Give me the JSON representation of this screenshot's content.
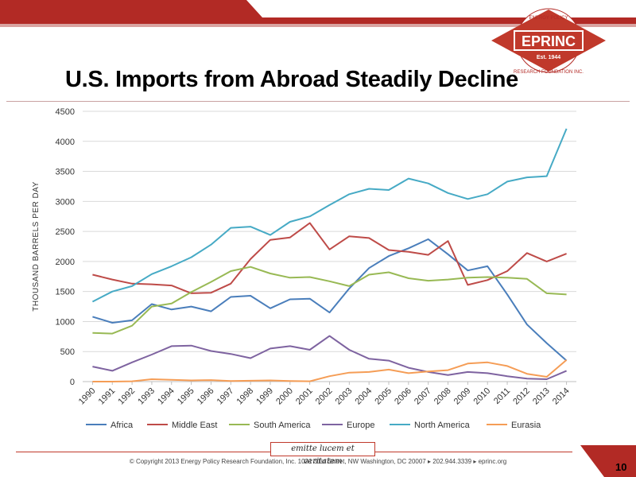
{
  "slide": {
    "title": "U.S. Imports from Abroad Steadily Decline",
    "page_number": "10",
    "motto": "emitte lucem et veritatem",
    "copyright": "© Copyright 2013 Energy Policy Research Foundation, Inc. 1031 31st Street, NW Washington, DC 20007 ▸ 202.944.3339 ▸ eprinc.org",
    "accent_color": "#c0392b"
  },
  "logo": {
    "name": "EPRINC",
    "est": "Est. 1944",
    "arc_top": "ENERGY POLICY",
    "arc_bottom": "RESEARCH FOUNDATION INC."
  },
  "chart_data": {
    "type": "line",
    "title": "",
    "xlabel": "",
    "ylabel": "THOUSAND BARRELS PER DAY",
    "ylim": [
      0,
      4500
    ],
    "yticks": [
      0,
      500,
      1000,
      1500,
      2000,
      2500,
      3000,
      3500,
      4000,
      4500
    ],
    "grid": true,
    "legend": "bottom",
    "x": [
      "1990",
      "1991",
      "1992",
      "1993",
      "1994",
      "1995",
      "1996",
      "1997",
      "1998",
      "1999",
      "2000",
      "2001",
      "2002",
      "2003",
      "2004",
      "2005",
      "2006",
      "2007",
      "2008",
      "2009",
      "2010",
      "2011",
      "2012",
      "2013",
      "2014"
    ],
    "series": [
      {
        "name": "Africa",
        "color": "#4a7ebb",
        "values": [
          1080,
          980,
          1020,
          1290,
          1200,
          1250,
          1170,
          1410,
          1430,
          1220,
          1370,
          1380,
          1150,
          1550,
          1890,
          2090,
          2220,
          2370,
          2120,
          1850,
          1920,
          1450,
          950,
          640,
          350
        ]
      },
      {
        "name": "Middle East",
        "color": "#be4b48",
        "values": [
          1780,
          1700,
          1630,
          1620,
          1600,
          1470,
          1480,
          1630,
          2040,
          2360,
          2400,
          2640,
          2200,
          2420,
          2390,
          2190,
          2160,
          2110,
          2340,
          1610,
          1690,
          1840,
          2140,
          2000,
          2130
        ]
      },
      {
        "name": "South America",
        "color": "#98b954",
        "values": [
          810,
          800,
          930,
          1250,
          1300,
          1490,
          1660,
          1840,
          1910,
          1800,
          1730,
          1740,
          1670,
          1590,
          1780,
          1820,
          1720,
          1680,
          1700,
          1730,
          1740,
          1730,
          1710,
          1470,
          1450
        ]
      },
      {
        "name": "Europe",
        "color": "#7e63a0",
        "values": [
          250,
          180,
          320,
          450,
          590,
          600,
          510,
          460,
          390,
          550,
          590,
          530,
          760,
          530,
          380,
          350,
          230,
          160,
          110,
          160,
          140,
          90,
          50,
          40,
          180
        ]
      },
      {
        "name": "North America",
        "color": "#46aac5",
        "values": [
          1330,
          1500,
          1590,
          1790,
          1920,
          2070,
          2280,
          2560,
          2580,
          2440,
          2660,
          2750,
          2940,
          3120,
          3210,
          3190,
          3380,
          3300,
          3140,
          3040,
          3120,
          3330,
          3400,
          3420,
          4210
        ]
      },
      {
        "name": "Eurasia",
        "color": "#f59d56",
        "values": [
          0,
          0,
          5,
          40,
          30,
          20,
          25,
          10,
          15,
          20,
          10,
          5,
          90,
          150,
          160,
          200,
          140,
          170,
          190,
          300,
          320,
          260,
          130,
          80,
          360
        ]
      }
    ]
  }
}
